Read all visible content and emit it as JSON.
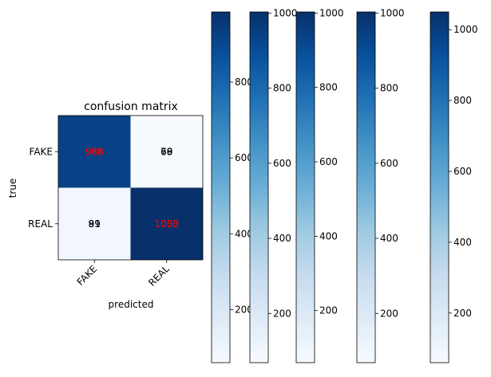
{
  "chart_data": {
    "type": "heatmap",
    "title": "confusion matrix",
    "xlabel": "predicted",
    "ylabel": "true",
    "x_categories": [
      "FAKE",
      "REAL"
    ],
    "y_categories": [
      "FAKE",
      "REAL"
    ],
    "colormap": "Blues",
    "cmap_colors": {
      "low": "#f7fbff",
      "high": "#08306b"
    },
    "matrix": [
      [
        985,
        60
      ],
      [
        91,
        1050
      ]
    ],
    "cell_labels": [
      {
        "row": 0,
        "col": 0,
        "text": "985",
        "color": "#ff0000"
      },
      {
        "row": 0,
        "col": 0,
        "text": "966",
        "color": "#ff0000"
      },
      {
        "row": 0,
        "col": 0,
        "text": "988",
        "color": "#ff0000"
      },
      {
        "row": 0,
        "col": 1,
        "text": "78",
        "color": "#000000"
      },
      {
        "row": 0,
        "col": 1,
        "text": "69",
        "color": "#000000"
      },
      {
        "row": 0,
        "col": 1,
        "text": "60",
        "color": "#000000"
      },
      {
        "row": 1,
        "col": 0,
        "text": "89",
        "color": "#000000"
      },
      {
        "row": 1,
        "col": 0,
        "text": "91",
        "color": "#000000"
      },
      {
        "row": 1,
        "col": 1,
        "text": "1003",
        "color": "#ff0000"
      },
      {
        "row": 1,
        "col": 1,
        "text": "1050",
        "color": "#ff0000"
      }
    ],
    "colorbars": [
      {
        "vmin": 60,
        "vmax": 985,
        "ticks": [
          200,
          400,
          600,
          800
        ],
        "tick_labels": [
          "200",
          "400",
          "600",
          "800"
        ]
      },
      {
        "vmin": 69,
        "vmax": 1003,
        "ticks": [
          200,
          400,
          600,
          800,
          1000
        ],
        "tick_labels": [
          "200",
          "400",
          "600",
          "800",
          "1000"
        ]
      },
      {
        "vmin": 60,
        "vmax": 1003,
        "ticks": [
          200,
          400,
          600,
          800,
          1000
        ],
        "tick_labels": [
          "200",
          "400",
          "600",
          "800",
          "1000"
        ]
      },
      {
        "vmin": 69,
        "vmax": 1003,
        "ticks": [
          200,
          400,
          600,
          800,
          1000
        ],
        "tick_labels": [
          "200",
          "400",
          "600",
          "800",
          "1000"
        ]
      },
      {
        "vmin": 60,
        "vmax": 1050,
        "ticks": [
          200,
          400,
          600,
          800,
          1000
        ],
        "tick_labels": [
          "200",
          "400",
          "600",
          "800",
          "1000"
        ]
      }
    ]
  }
}
